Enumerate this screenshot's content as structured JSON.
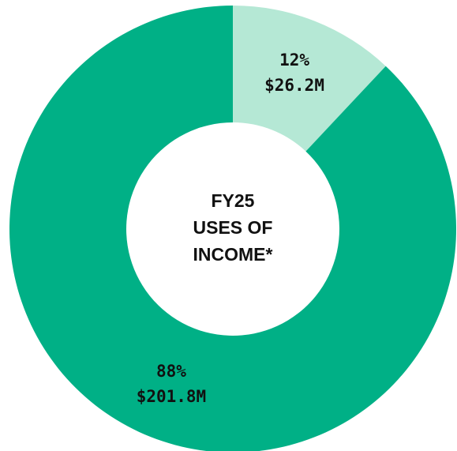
{
  "chart_data": {
    "type": "donut",
    "title_lines": [
      "FY25",
      "USES OF",
      "INCOME*"
    ],
    "values": [
      12,
      88
    ],
    "value_labels": [
      "12%",
      "88%"
    ],
    "amounts": [
      26.2,
      201.8
    ],
    "amount_labels": [
      "$26.2M",
      "$201.8M"
    ],
    "colors": [
      "#b5e8d5",
      "#00b086"
    ]
  }
}
